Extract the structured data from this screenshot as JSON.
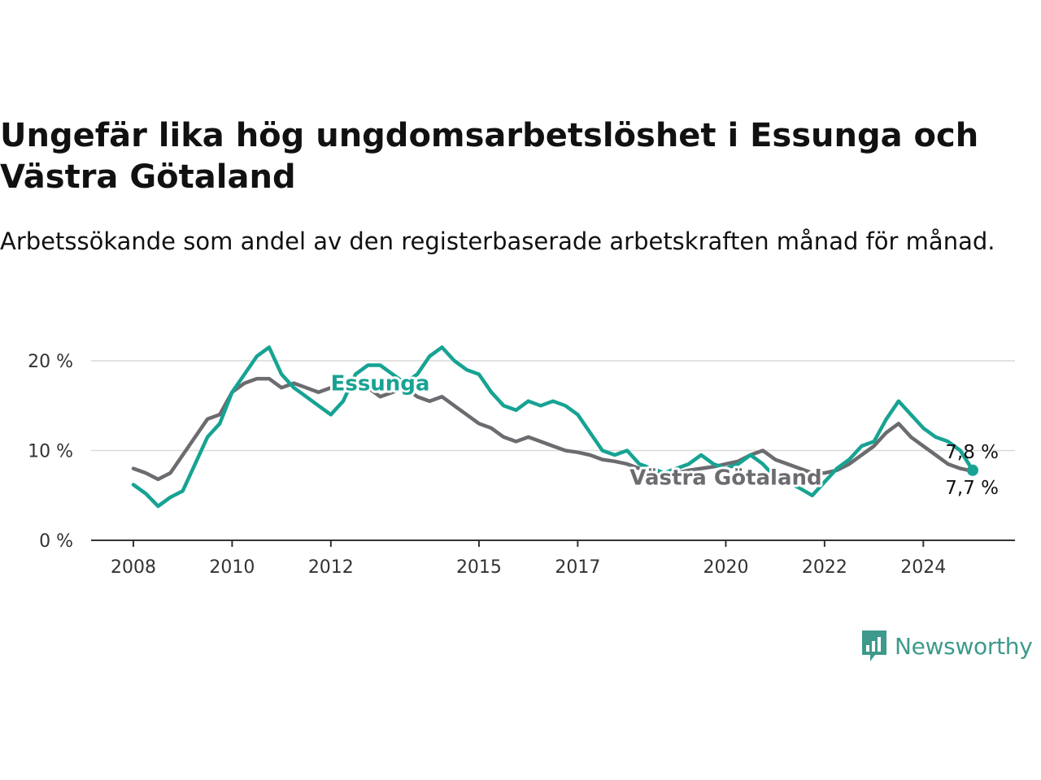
{
  "title": "Ungefär lika hög ungdomsarbetslöshet i Essunga och Västra Götaland",
  "subtitle": "Arbetssökande som andel av den registerbaserade arbetskraften månad för månad.",
  "brand": {
    "name": "Newsworthy",
    "color": "#3d9a8c",
    "icon": "newsworthy-chart-icon"
  },
  "chart_data": {
    "type": "line",
    "title": "Ungefär lika hög ungdomsarbetslöshet i Essunga och Västra Götaland",
    "subtitle": "Arbetssökande som andel av den registerbaserade arbetskraften månad för månad.",
    "xlabel": "",
    "ylabel": "",
    "x_ticks": [
      "2008",
      "2010",
      "2012",
      "2015",
      "2017",
      "2020",
      "2022",
      "2024"
    ],
    "y_ticks": [
      {
        "value": 0,
        "label": "0 %"
      },
      {
        "value": 10,
        "label": "10 %"
      },
      {
        "value": 20,
        "label": "20 %"
      }
    ],
    "xlim": [
      2008.0,
      2025.0
    ],
    "ylim": [
      0,
      20
    ],
    "grid": "horizontal",
    "legend": "direct labels on lines",
    "series": [
      {
        "name": "Essunga",
        "color": "#17a393",
        "label_color": "#17a393",
        "end_label": "7,8 %",
        "points": [
          [
            2008.0,
            6.2
          ],
          [
            2008.25,
            5.2
          ],
          [
            2008.5,
            3.8
          ],
          [
            2008.75,
            4.8
          ],
          [
            2009.0,
            5.5
          ],
          [
            2009.25,
            8.5
          ],
          [
            2009.5,
            11.5
          ],
          [
            2009.75,
            13.0
          ],
          [
            2010.0,
            16.5
          ],
          [
            2010.25,
            18.5
          ],
          [
            2010.5,
            20.5
          ],
          [
            2010.75,
            21.5
          ],
          [
            2011.0,
            18.5
          ],
          [
            2011.25,
            17.0
          ],
          [
            2011.5,
            16.0
          ],
          [
            2011.75,
            15.0
          ],
          [
            2012.0,
            14.0
          ],
          [
            2012.25,
            15.5
          ],
          [
            2012.5,
            18.5
          ],
          [
            2012.75,
            19.5
          ],
          [
            2013.0,
            19.5
          ],
          [
            2013.25,
            18.5
          ],
          [
            2013.5,
            17.5
          ],
          [
            2013.75,
            18.5
          ],
          [
            2014.0,
            20.5
          ],
          [
            2014.25,
            21.5
          ],
          [
            2014.5,
            20.0
          ],
          [
            2014.75,
            19.0
          ],
          [
            2015.0,
            18.5
          ],
          [
            2015.25,
            16.5
          ],
          [
            2015.5,
            15.0
          ],
          [
            2015.75,
            14.5
          ],
          [
            2016.0,
            15.5
          ],
          [
            2016.25,
            15.0
          ],
          [
            2016.5,
            15.5
          ],
          [
            2016.75,
            15.0
          ],
          [
            2017.0,
            14.0
          ],
          [
            2017.25,
            12.0
          ],
          [
            2017.5,
            10.0
          ],
          [
            2017.75,
            9.5
          ],
          [
            2018.0,
            10.0
          ],
          [
            2018.25,
            8.5
          ],
          [
            2018.5,
            8.0
          ],
          [
            2018.75,
            7.5
          ],
          [
            2019.0,
            8.0
          ],
          [
            2019.25,
            8.5
          ],
          [
            2019.5,
            9.5
          ],
          [
            2019.75,
            8.5
          ],
          [
            2020.0,
            8.0
          ],
          [
            2020.25,
            8.5
          ],
          [
            2020.5,
            9.5
          ],
          [
            2020.75,
            8.5
          ],
          [
            2021.0,
            7.0
          ],
          [
            2021.25,
            6.5
          ],
          [
            2021.5,
            5.8
          ],
          [
            2021.75,
            5.0
          ],
          [
            2022.0,
            6.5
          ],
          [
            2022.25,
            8.0
          ],
          [
            2022.5,
            9.0
          ],
          [
            2022.75,
            10.5
          ],
          [
            2023.0,
            11.0
          ],
          [
            2023.25,
            13.5
          ],
          [
            2023.5,
            15.5
          ],
          [
            2023.75,
            14.0
          ],
          [
            2024.0,
            12.5
          ],
          [
            2024.25,
            11.5
          ],
          [
            2024.5,
            11.0
          ],
          [
            2024.75,
            10.0
          ],
          [
            2025.0,
            7.8
          ]
        ]
      },
      {
        "name": "Västra Götaland",
        "color": "#6b6b70",
        "label_color": "#6b6b70",
        "end_label": "7,7 %",
        "points": [
          [
            2008.0,
            8.0
          ],
          [
            2008.25,
            7.5
          ],
          [
            2008.5,
            6.8
          ],
          [
            2008.75,
            7.5
          ],
          [
            2009.0,
            9.5
          ],
          [
            2009.25,
            11.5
          ],
          [
            2009.5,
            13.5
          ],
          [
            2009.75,
            14.0
          ],
          [
            2010.0,
            16.5
          ],
          [
            2010.25,
            17.5
          ],
          [
            2010.5,
            18.0
          ],
          [
            2010.75,
            18.0
          ],
          [
            2011.0,
            17.0
          ],
          [
            2011.25,
            17.5
          ],
          [
            2011.5,
            17.0
          ],
          [
            2011.75,
            16.5
          ],
          [
            2012.0,
            17.0
          ],
          [
            2012.25,
            17.5
          ],
          [
            2012.5,
            18.0
          ],
          [
            2012.75,
            17.0
          ],
          [
            2013.0,
            16.0
          ],
          [
            2013.25,
            16.5
          ],
          [
            2013.5,
            17.0
          ],
          [
            2013.75,
            16.0
          ],
          [
            2014.0,
            15.5
          ],
          [
            2014.25,
            16.0
          ],
          [
            2014.5,
            15.0
          ],
          [
            2014.75,
            14.0
          ],
          [
            2015.0,
            13.0
          ],
          [
            2015.25,
            12.5
          ],
          [
            2015.5,
            11.5
          ],
          [
            2015.75,
            11.0
          ],
          [
            2016.0,
            11.5
          ],
          [
            2016.25,
            11.0
          ],
          [
            2016.5,
            10.5
          ],
          [
            2016.75,
            10.0
          ],
          [
            2017.0,
            9.8
          ],
          [
            2017.25,
            9.5
          ],
          [
            2017.5,
            9.0
          ],
          [
            2017.75,
            8.8
          ],
          [
            2018.0,
            8.5
          ],
          [
            2018.25,
            8.0
          ],
          [
            2018.5,
            7.8
          ],
          [
            2018.75,
            7.5
          ],
          [
            2019.0,
            7.5
          ],
          [
            2019.25,
            7.8
          ],
          [
            2019.5,
            8.0
          ],
          [
            2019.75,
            8.2
          ],
          [
            2020.0,
            8.5
          ],
          [
            2020.25,
            8.8
          ],
          [
            2020.5,
            9.5
          ],
          [
            2020.75,
            10.0
          ],
          [
            2021.0,
            9.0
          ],
          [
            2021.25,
            8.5
          ],
          [
            2021.5,
            8.0
          ],
          [
            2021.75,
            7.5
          ],
          [
            2022.0,
            7.5
          ],
          [
            2022.25,
            7.8
          ],
          [
            2022.5,
            8.5
          ],
          [
            2022.75,
            9.5
          ],
          [
            2023.0,
            10.5
          ],
          [
            2023.25,
            12.0
          ],
          [
            2023.5,
            13.0
          ],
          [
            2023.75,
            11.5
          ],
          [
            2024.0,
            10.5
          ],
          [
            2024.25,
            9.5
          ],
          [
            2024.5,
            8.5
          ],
          [
            2024.75,
            8.0
          ],
          [
            2025.0,
            7.7
          ]
        ]
      }
    ]
  }
}
